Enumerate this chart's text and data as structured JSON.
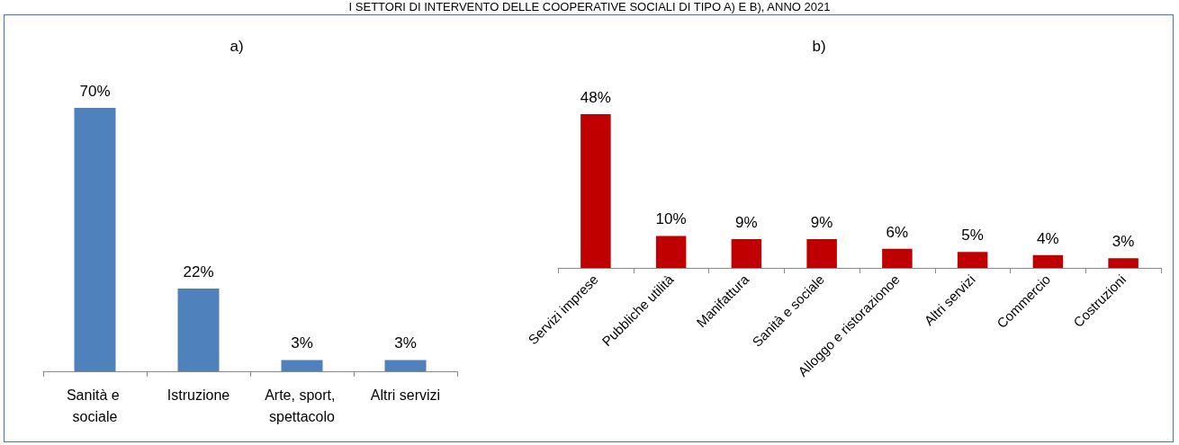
{
  "chart_data": [
    {
      "type": "bar",
      "title": "a)",
      "annotations": [
        "I SETTORI DI INTERVENTO DELLE COOPERATIVE SOCIALI DI TIPO A) E B), ANNO 2021"
      ],
      "categories": [
        "Sanità e sociale",
        "Istruzione",
        "Arte, sport, spettacolo",
        "Altri servizi"
      ],
      "values": [
        70,
        22,
        3,
        3
      ],
      "value_labels": [
        "70%",
        "22%",
        "3%",
        "3%"
      ],
      "color": "#4f81bd"
    },
    {
      "type": "bar",
      "title": "b)",
      "categories": [
        "Servizi imprese",
        "Pubbliche utilità",
        "Manifattura",
        "Sanità e sociale",
        "Alloggo e ristorazionoe",
        "Altri servizi",
        "Commercio",
        "Costruzioni"
      ],
      "values": [
        48,
        10,
        9,
        9,
        6,
        5,
        4,
        3
      ],
      "value_labels": [
        "48%",
        "10%",
        "9%",
        "9%",
        "6%",
        "5%",
        "4%",
        "3%"
      ],
      "color": "#c00000"
    }
  ]
}
